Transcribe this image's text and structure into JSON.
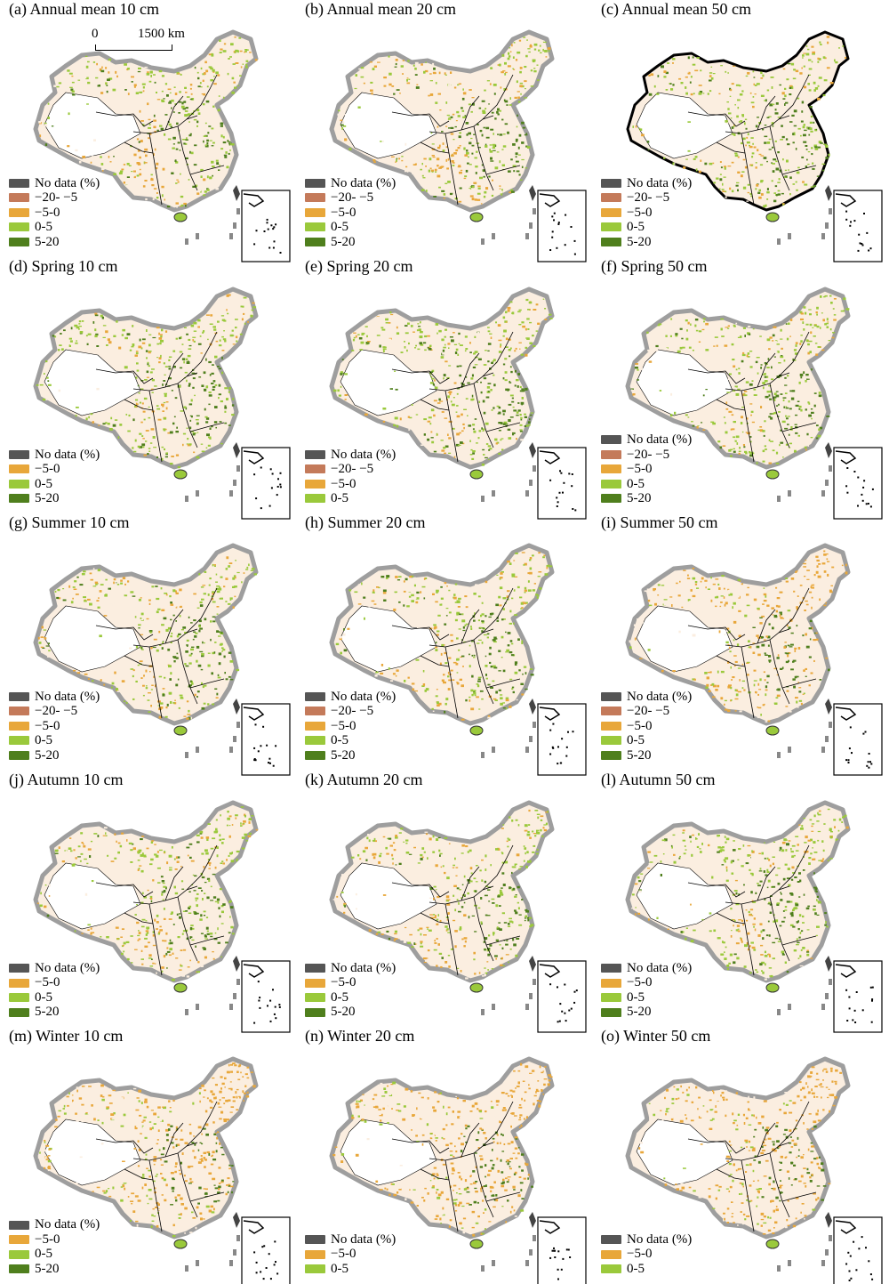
{
  "colors": {
    "no_data": "#555555",
    "neg20_neg5": "#c47a5a",
    "neg5_0": "#e8a73a",
    "pos0_5": "#9ac93b",
    "pos5_20": "#4f7f1d",
    "land_fill": "#fbeee0",
    "border_outer": "#9e9e9e"
  },
  "scale_bar": {
    "zero": "0",
    "distance": "1500 km"
  },
  "legend_labels": {
    "no_data": "No data (%)",
    "neg20_neg5": "−20- −5",
    "neg5_0": "−5-0",
    "pos0_5": "0-5",
    "pos5_20": "5-20"
  },
  "panels": [
    {
      "title": "(a) Annual mean 10 cm",
      "legend": [
        "no_data",
        "neg20_neg5",
        "neg5_0",
        "pos0_5",
        "pos5_20"
      ],
      "dominant": "mixed"
    },
    {
      "title": "(b) Annual mean 20 cm",
      "legend": [
        "no_data",
        "neg20_neg5",
        "neg5_0",
        "pos0_5",
        "pos5_20"
      ],
      "dominant": "mixed"
    },
    {
      "title": "(c) Annual mean 50 cm",
      "legend": [
        "no_data",
        "neg20_neg5",
        "neg5_0",
        "pos0_5",
        "pos5_20"
      ],
      "dominant": "green"
    },
    {
      "title": "(d) Spring 10 cm",
      "legend": [
        "no_data",
        "neg5_0",
        "pos0_5",
        "pos5_20"
      ],
      "dominant": "green"
    },
    {
      "title": "(e) Spring 20 cm",
      "legend": [
        "no_data",
        "neg20_neg5",
        "neg5_0",
        "pos0_5"
      ],
      "dominant": "green"
    },
    {
      "title": "(f) Spring 50 cm",
      "legend": [
        "no_data",
        "neg20_neg5",
        "neg5_0",
        "pos0_5",
        "pos5_20"
      ],
      "dominant": "green"
    },
    {
      "title": "(g) Summer 10 cm",
      "legend": [
        "no_data",
        "neg20_neg5",
        "neg5_0",
        "pos0_5",
        "pos5_20"
      ],
      "dominant": "mixed"
    },
    {
      "title": "(h) Summer 20 cm",
      "legend": [
        "no_data",
        "neg20_neg5",
        "neg5_0",
        "pos0_5",
        "pos5_20"
      ],
      "dominant": "mixed"
    },
    {
      "title": "(i) Summer 50 cm",
      "legend": [
        "no_data",
        "neg20_neg5",
        "neg5_0",
        "pos0_5",
        "pos5_20"
      ],
      "dominant": "orange"
    },
    {
      "title": "(j) Autumn 10 cm",
      "legend": [
        "no_data",
        "neg5_0",
        "pos0_5",
        "pos5_20"
      ],
      "dominant": "mixed"
    },
    {
      "title": "(k) Autumn 20 cm",
      "legend": [
        "no_data",
        "neg5_0",
        "pos0_5",
        "pos5_20"
      ],
      "dominant": "mixed"
    },
    {
      "title": "(l) Autumn 50 cm",
      "legend": [
        "no_data",
        "neg5_0",
        "pos0_5",
        "pos5_20"
      ],
      "dominant": "green"
    },
    {
      "title": "(m) Winter 10 cm",
      "legend": [
        "no_data",
        "neg5_0",
        "pos0_5",
        "pos5_20"
      ],
      "dominant": "orange"
    },
    {
      "title": "(n) Winter 20 cm",
      "legend": [
        "no_data",
        "neg5_0",
        "pos0_5"
      ],
      "dominant": "orange"
    },
    {
      "title": "(o) Winter 50 cm",
      "legend": [
        "no_data",
        "neg5_0",
        "pos0_5"
      ],
      "dominant": "orange"
    }
  ]
}
